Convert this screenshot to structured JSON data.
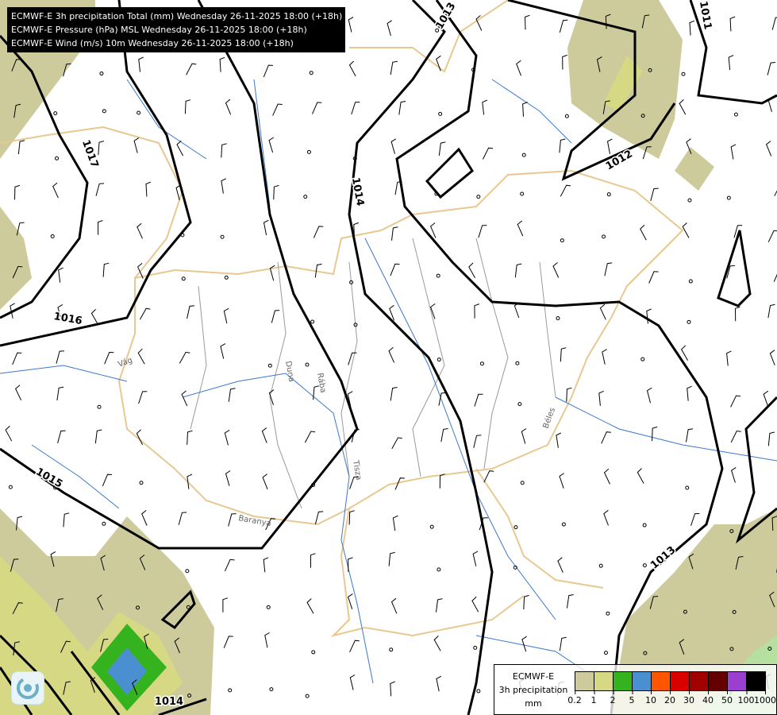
{
  "titles": [
    "ECMWF-E 3h precipitation Total (mm) Wednesday 26-11-2025 18:00 (+18h)",
    "ECMWF-E Pressure (hPa) MSL Wednesday 26-11-2025 18:00 (+18h)",
    "ECMWF-E Wind (m/s) 10m Wednesday 26-11-2025 18:00 (+18h)"
  ],
  "isobar_labels": [
    "1013",
    "1011",
    "1017",
    "1014",
    "1012",
    "1016",
    "1015",
    "1013",
    "1014"
  ],
  "place_labels": [
    "Vág",
    "Rába",
    "Baranya",
    "Tisza",
    "Duna",
    "Béles"
  ],
  "legend": {
    "line1": "ECMWF-E",
    "line2": "3h precipitation",
    "line3": "mm",
    "colors": [
      "#cdcb9c",
      "#d6d884",
      "#35b31e",
      "#4a8fd0",
      "#ff5500",
      "#d90000",
      "#a00000",
      "#640000",
      "#9b3fd0",
      "#000000"
    ],
    "ticks": [
      "0.2",
      "1",
      "2",
      "5",
      "10",
      "20",
      "30",
      "40",
      "50",
      "100",
      "1000"
    ]
  },
  "logo": "meteo-logo"
}
